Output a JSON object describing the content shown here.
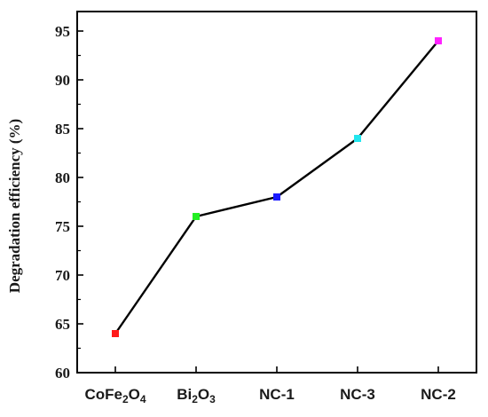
{
  "chart_data": {
    "type": "line",
    "title": "",
    "xlabel": "",
    "ylabel": "Degradation efficiency (%)",
    "categories": [
      "CoFe2O4",
      "Bi2O3",
      "NC-1",
      "NC-3",
      "NC-2"
    ],
    "category_labels": [
      [
        {
          "t": "CoFe",
          "sub": false
        },
        {
          "t": "2",
          "sub": true
        },
        {
          "t": "O",
          "sub": false
        },
        {
          "t": "4",
          "sub": true
        }
      ],
      [
        {
          "t": "Bi",
          "sub": false
        },
        {
          "t": "2",
          "sub": true
        },
        {
          "t": "O",
          "sub": false
        },
        {
          "t": "3",
          "sub": true
        }
      ],
      [
        {
          "t": "NC-1",
          "sub": false
        }
      ],
      [
        {
          "t": "NC-3",
          "sub": false
        }
      ],
      [
        {
          "t": "NC-2",
          "sub": false
        }
      ]
    ],
    "values": [
      64,
      76,
      78,
      84,
      94
    ],
    "marker_colors": [
      "#ff1a1a",
      "#22ee22",
      "#1a1aff",
      "#22e6ee",
      "#ff22ff"
    ],
    "line_color": "#000000",
    "ylim": [
      60,
      97
    ],
    "yticks": [
      60,
      65,
      70,
      75,
      80,
      85,
      90,
      95
    ],
    "grid": false,
    "legend": "none"
  }
}
